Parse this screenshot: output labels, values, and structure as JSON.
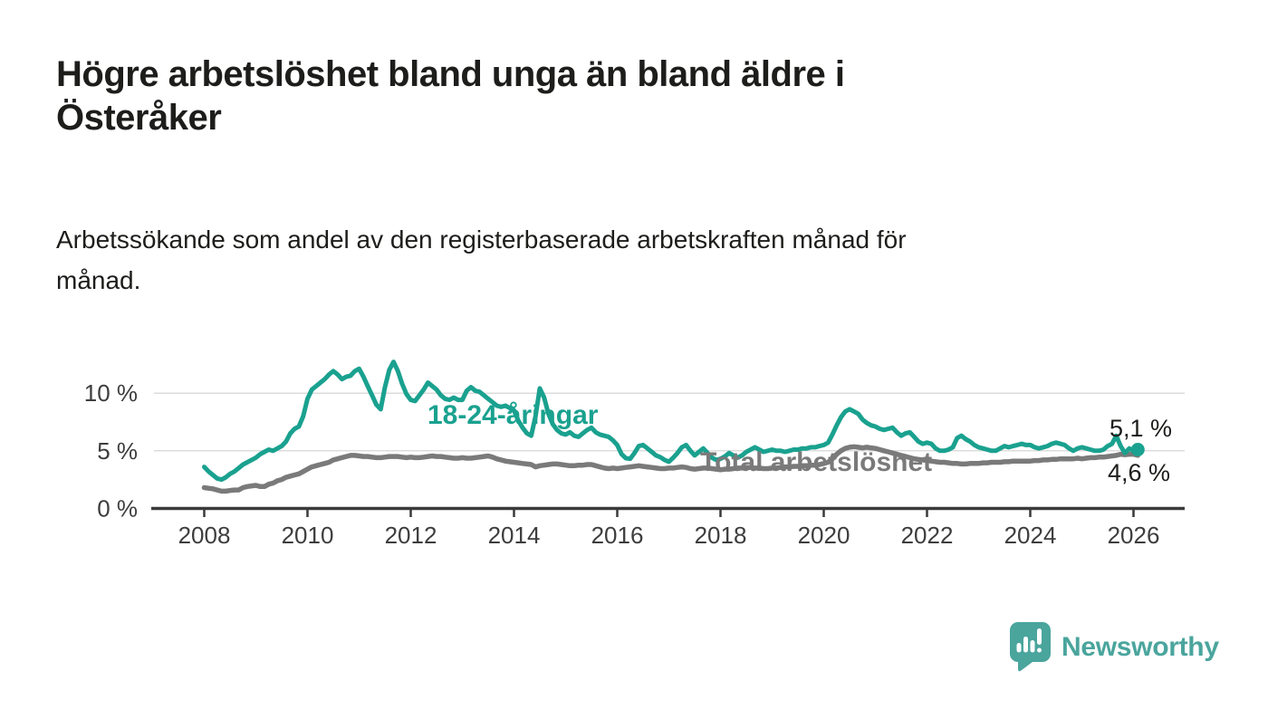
{
  "header": {
    "title_lines": [
      "Högre arbetslöshet bland unga än bland äldre i",
      "Österåker"
    ],
    "subtitle_lines": [
      "Arbetssökande som andel av den registerbaserade arbetskraften månad för",
      "månad."
    ]
  },
  "colors": {
    "youth_line": "#1aa18f",
    "total_line": "#7a7a7a",
    "axis": "#3a3a3a",
    "gridline": "#dcdcdc",
    "text": "#1d1d1b",
    "brand_teal": "#4aa59d"
  },
  "chart_data": {
    "type": "line",
    "title": "Högre arbetslöshet bland unga än bland äldre i Österåker",
    "subtitle": "Arbetssökande som andel av den registerbaserade arbetskraften månad för månad.",
    "x_unit": "month",
    "x_start": "2008-01",
    "x_end": "2026-02",
    "xlim": [
      2008,
      2026.2
    ],
    "ylim": [
      0,
      13.5
    ],
    "grid": "horizontal-only",
    "legend": "inline-labels",
    "y_ticks": [
      0,
      5,
      10
    ],
    "y_tick_labels": [
      "0 %",
      "5 %",
      "10 %"
    ],
    "x_tick_labels": [
      "2008",
      "2010",
      "2012",
      "2014",
      "2016",
      "2018",
      "2020",
      "2022",
      "2024",
      "2026"
    ],
    "series": [
      {
        "name": "18-24-åringar",
        "color": "#1aa18f",
        "end_label": "5,1 %",
        "end_dot": true,
        "values": [
          3.6,
          3.2,
          2.9,
          2.6,
          2.5,
          2.7,
          3.0,
          3.2,
          3.5,
          3.8,
          4.0,
          4.2,
          4.4,
          4.7,
          4.9,
          5.1,
          5.0,
          5.2,
          5.4,
          5.8,
          6.5,
          6.9,
          7.1,
          8.0,
          9.5,
          10.3,
          10.6,
          10.9,
          11.2,
          11.6,
          11.9,
          11.6,
          11.2,
          11.4,
          11.5,
          11.9,
          12.1,
          11.4,
          10.6,
          9.8,
          9.0,
          8.6,
          10.5,
          12.0,
          12.7,
          11.9,
          10.8,
          9.9,
          9.4,
          9.3,
          9.8,
          10.3,
          10.9,
          10.6,
          10.3,
          9.8,
          9.5,
          9.4,
          9.6,
          9.4,
          9.4,
          10.2,
          10.5,
          10.2,
          10.1,
          9.8,
          9.5,
          9.2,
          8.9,
          8.8,
          8.9,
          8.7,
          8.5,
          7.6,
          7.0,
          6.5,
          6.3,
          8.0,
          10.4,
          9.6,
          8.2,
          7.3,
          6.8,
          6.5,
          6.4,
          6.6,
          6.3,
          6.2,
          6.5,
          6.8,
          7.0,
          6.6,
          6.4,
          6.3,
          6.2,
          5.9,
          5.5,
          4.7,
          4.35,
          4.3,
          4.8,
          5.4,
          5.5,
          5.2,
          4.9,
          4.6,
          4.45,
          4.2,
          4.05,
          4.4,
          4.8,
          5.3,
          5.5,
          5.0,
          4.6,
          4.9,
          5.2,
          4.8,
          4.4,
          4.2,
          4.3,
          4.5,
          4.8,
          4.6,
          4.4,
          4.6,
          4.9,
          5.1,
          5.3,
          5.1,
          4.9,
          5.0,
          5.1,
          5.0,
          5.0,
          4.9,
          5.0,
          5.1,
          5.1,
          5.2,
          5.2,
          5.3,
          5.3,
          5.4,
          5.5,
          5.7,
          6.4,
          7.2,
          7.9,
          8.4,
          8.6,
          8.4,
          8.2,
          7.7,
          7.4,
          7.2,
          7.1,
          6.9,
          6.8,
          6.9,
          7.0,
          6.6,
          6.3,
          6.5,
          6.6,
          6.2,
          5.8,
          5.6,
          5.7,
          5.6,
          5.2,
          5.0,
          5.0,
          5.1,
          5.3,
          6.1,
          6.3,
          6.0,
          5.8,
          5.5,
          5.3,
          5.2,
          5.1,
          5.0,
          5.0,
          5.2,
          5.4,
          5.3,
          5.4,
          5.5,
          5.6,
          5.5,
          5.5,
          5.3,
          5.2,
          5.3,
          5.4,
          5.6,
          5.7,
          5.6,
          5.5,
          5.2,
          5.0,
          5.2,
          5.3,
          5.2,
          5.1,
          5.0,
          5.0,
          5.1,
          5.4,
          5.6,
          6.3,
          5.4,
          4.8,
          5.2,
          5.0,
          5.1
        ]
      },
      {
        "name": "Total arbetslöshet",
        "color": "#7a7a7a",
        "end_label": "4,6 %",
        "end_dot": false,
        "values": [
          1.8,
          1.75,
          1.7,
          1.6,
          1.5,
          1.5,
          1.55,
          1.6,
          1.6,
          1.8,
          1.9,
          1.95,
          2.0,
          1.9,
          1.9,
          2.1,
          2.2,
          2.4,
          2.5,
          2.7,
          2.8,
          2.9,
          3.0,
          3.2,
          3.4,
          3.6,
          3.7,
          3.8,
          3.9,
          4.0,
          4.2,
          4.3,
          4.4,
          4.5,
          4.6,
          4.6,
          4.55,
          4.5,
          4.5,
          4.45,
          4.4,
          4.4,
          4.45,
          4.5,
          4.5,
          4.5,
          4.45,
          4.4,
          4.45,
          4.4,
          4.4,
          4.45,
          4.5,
          4.55,
          4.5,
          4.5,
          4.45,
          4.4,
          4.35,
          4.35,
          4.4,
          4.35,
          4.35,
          4.4,
          4.45,
          4.5,
          4.55,
          4.45,
          4.3,
          4.2,
          4.1,
          4.05,
          4.0,
          3.95,
          3.9,
          3.85,
          3.8,
          3.6,
          3.7,
          3.75,
          3.8,
          3.85,
          3.85,
          3.8,
          3.75,
          3.7,
          3.7,
          3.75,
          3.75,
          3.8,
          3.8,
          3.7,
          3.6,
          3.5,
          3.45,
          3.5,
          3.45,
          3.5,
          3.55,
          3.6,
          3.65,
          3.7,
          3.65,
          3.6,
          3.55,
          3.5,
          3.45,
          3.45,
          3.5,
          3.5,
          3.55,
          3.6,
          3.55,
          3.45,
          3.4,
          3.45,
          3.5,
          3.5,
          3.45,
          3.4,
          3.35,
          3.4,
          3.4,
          3.45,
          3.5,
          3.5,
          3.55,
          3.55,
          3.5,
          3.5,
          3.45,
          3.45,
          3.5,
          3.5,
          3.55,
          3.6,
          3.6,
          3.65,
          3.65,
          3.7,
          3.7,
          3.75,
          3.75,
          3.8,
          3.9,
          4.0,
          4.3,
          4.7,
          5.0,
          5.2,
          5.3,
          5.35,
          5.3,
          5.25,
          5.3,
          5.25,
          5.2,
          5.1,
          5.0,
          4.9,
          4.8,
          4.7,
          4.6,
          4.5,
          4.4,
          4.3,
          4.25,
          4.2,
          4.15,
          4.1,
          4.05,
          4.0,
          4.0,
          3.95,
          3.9,
          3.9,
          3.85,
          3.85,
          3.9,
          3.9,
          3.9,
          3.95,
          3.95,
          4.0,
          4.0,
          4.0,
          4.05,
          4.05,
          4.1,
          4.1,
          4.1,
          4.1,
          4.1,
          4.15,
          4.15,
          4.2,
          4.2,
          4.25,
          4.25,
          4.3,
          4.3,
          4.3,
          4.3,
          4.35,
          4.3,
          4.35,
          4.4,
          4.4,
          4.45,
          4.45,
          4.5,
          4.55,
          4.6,
          4.7,
          4.65,
          4.7,
          4.7,
          4.6
        ]
      }
    ]
  },
  "annotations": {
    "youth_label": "18-24-åringar",
    "total_label": "Total arbetslöshet",
    "end_label_youth": "5,1 %",
    "end_label_total": "4,6 %"
  },
  "footer": {
    "brand": "Newsworthy"
  }
}
